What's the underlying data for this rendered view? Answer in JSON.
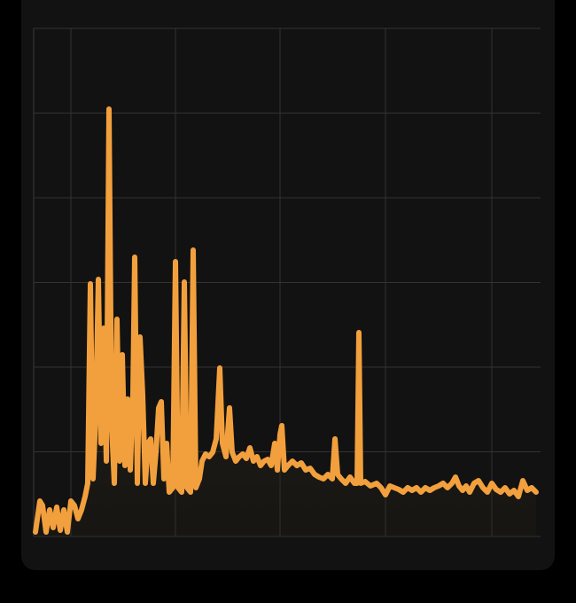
{
  "chart_data": {
    "type": "area",
    "x": [
      2,
      7,
      10,
      14,
      18,
      22,
      26,
      30,
      34,
      38,
      42,
      46,
      50,
      54,
      58,
      61,
      64,
      67,
      70,
      73,
      76,
      79,
      82,
      85,
      88,
      91,
      94,
      97,
      100,
      103,
      106,
      109,
      112,
      114,
      117,
      120,
      123,
      126,
      129,
      132,
      135,
      138,
      141,
      144,
      147,
      150,
      153,
      157,
      160,
      163,
      167,
      170,
      173,
      177,
      180,
      183,
      187,
      190,
      194,
      198,
      202,
      206,
      210,
      213,
      217,
      221,
      224,
      228,
      232,
      236,
      240,
      244,
      248,
      252,
      256,
      260,
      264,
      268,
      272,
      275,
      278,
      280,
      283,
      287,
      292,
      297,
      302,
      307,
      312,
      317,
      322,
      327,
      332,
      337,
      340,
      343,
      347,
      352,
      357,
      362,
      365,
      367,
      369,
      374,
      380,
      387,
      392,
      397,
      402,
      407,
      412,
      417,
      422,
      427,
      432,
      437,
      442,
      447,
      452,
      457,
      462,
      467,
      472,
      476,
      480,
      484,
      488,
      492,
      497,
      502,
      507,
      512,
      517,
      522,
      527,
      532,
      537,
      542,
      547,
      552,
      557,
      562,
      567
    ],
    "values": [
      5,
      40,
      35,
      5,
      30,
      10,
      33,
      7,
      30,
      5,
      40,
      35,
      20,
      30,
      45,
      60,
      285,
      65,
      135,
      290,
      105,
      235,
      85,
      482,
      125,
      60,
      245,
      85,
      205,
      80,
      155,
      75,
      160,
      315,
      60,
      225,
      160,
      60,
      105,
      110,
      60,
      95,
      145,
      152,
      65,
      105,
      50,
      55,
      310,
      55,
      50,
      287,
      55,
      50,
      323,
      55,
      65,
      85,
      93,
      90,
      95,
      110,
      190,
      105,
      90,
      145,
      95,
      85,
      90,
      93,
      88,
      100,
      85,
      90,
      80,
      85,
      87,
      80,
      105,
      75,
      115,
      125,
      75,
      80,
      85,
      80,
      83,
      75,
      77,
      70,
      67,
      65,
      70,
      65,
      110,
      70,
      65,
      60,
      67,
      60,
      60,
      230,
      60,
      62,
      57,
      60,
      55,
      47,
      57,
      55,
      53,
      50,
      55,
      52,
      55,
      50,
      55,
      52,
      55,
      57,
      60,
      55,
      60,
      67,
      57,
      52,
      57,
      50,
      60,
      63,
      55,
      50,
      60,
      53,
      50,
      55,
      48,
      52,
      45,
      63,
      52,
      55,
      50
    ],
    "color": "#f2a03d",
    "fill_color": "#2b2417",
    "xlim": [
      0,
      572
    ],
    "xticks": [
      42,
      160,
      278,
      397,
      517
    ],
    "ylim": [
      0,
      573
    ],
    "yticks": [
      0,
      95.5,
      191,
      286.5,
      382,
      477.5,
      573
    ],
    "grid": true
  }
}
